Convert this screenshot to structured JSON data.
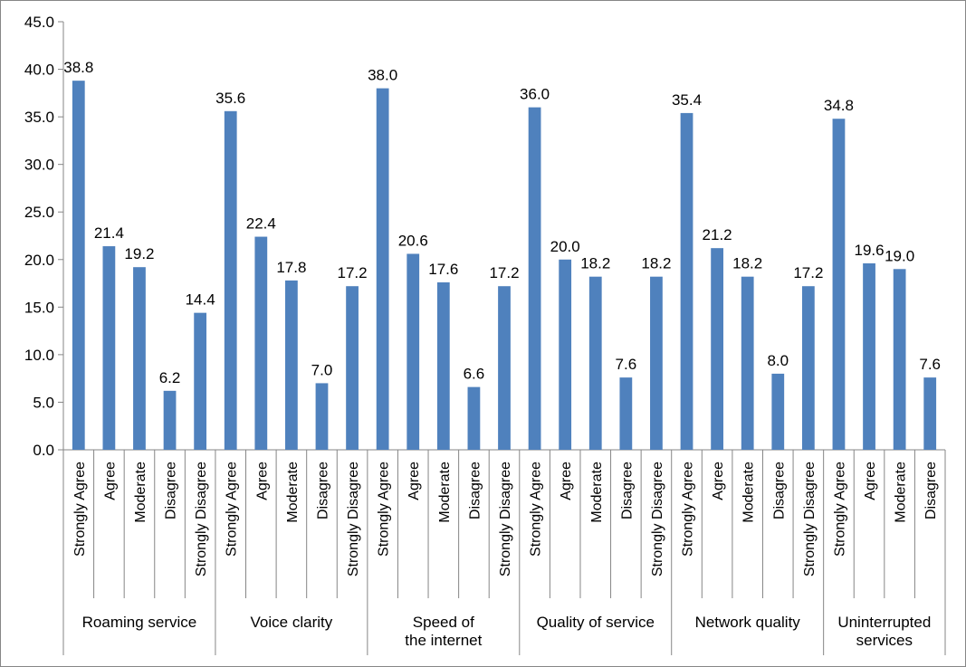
{
  "chart_data": {
    "type": "bar",
    "title": "",
    "xlabel": "",
    "ylabel": "",
    "ylim": [
      0,
      45
    ],
    "y_ticks": [
      "0.0",
      "5.0",
      "10.0",
      "15.0",
      "20.0",
      "25.0",
      "30.0",
      "35.0",
      "40.0",
      "45.0"
    ],
    "grid": false,
    "bar_color": "#4F81BD",
    "groups": [
      {
        "name": "Roaming service",
        "categories": [
          "Strongly Agree",
          "Agree",
          "Moderate",
          "Disagree",
          "Strongly Disagree"
        ],
        "values": [
          38.8,
          21.4,
          19.2,
          6.2,
          14.4
        ],
        "value_labels": [
          "38.8",
          "21.4",
          "19.2",
          "6.2",
          "14.4"
        ]
      },
      {
        "name": "Voice clarity",
        "categories": [
          "Strongly Agree",
          "Agree",
          "Moderate",
          "Disagree",
          "Strongly Disagree"
        ],
        "values": [
          35.6,
          22.4,
          17.8,
          7.0,
          17.2
        ],
        "value_labels": [
          "35.6",
          "22.4",
          "17.8",
          "7.0",
          "17.2"
        ]
      },
      {
        "name": "Speed of the internet",
        "categories": [
          "Strongly Agree",
          "Agree",
          "Moderate",
          "Disagree",
          "Strongly Disagree"
        ],
        "values": [
          38.0,
          20.6,
          17.6,
          6.6,
          17.2
        ],
        "value_labels": [
          "38.0",
          "20.6",
          "17.6",
          "6.6",
          "17.2"
        ]
      },
      {
        "name": "Quality of service",
        "categories": [
          "Strongly Agree",
          "Agree",
          "Moderate",
          "Disagree",
          "Strongly Disagree"
        ],
        "values": [
          36.0,
          20.0,
          18.2,
          7.6,
          18.2
        ],
        "value_labels": [
          "36.0",
          "20.0",
          "18.2",
          "7.6",
          "18.2"
        ]
      },
      {
        "name": "Network quality",
        "categories": [
          "Strongly Agree",
          "Agree",
          "Moderate",
          "Disagree",
          "Strongly Disagree"
        ],
        "values": [
          35.4,
          21.2,
          18.2,
          8.0,
          17.2
        ],
        "value_labels": [
          "35.4",
          "21.2",
          "18.2",
          "8.0",
          "17.2"
        ]
      },
      {
        "name": "Uninterrupted services",
        "categories": [
          "Strongly Agree",
          "Agree",
          "Moderate",
          "Disagree"
        ],
        "values": [
          34.8,
          19.6,
          19.0,
          7.6
        ],
        "value_labels": [
          "34.8",
          "19.6",
          "19.0",
          "7.6"
        ]
      }
    ]
  }
}
